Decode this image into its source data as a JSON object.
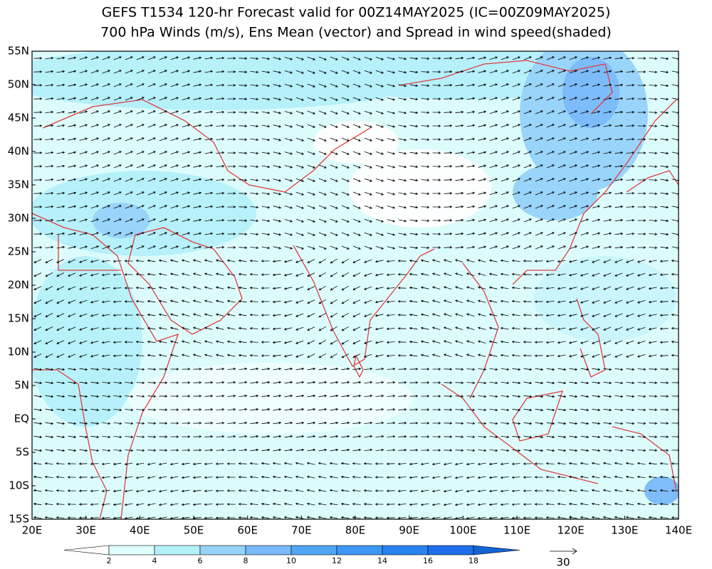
{
  "header": {
    "title": "GEFS T1534 120-hr Forecast valid for 00Z14MAY2025 (IC=00Z09MAY2025)",
    "subtitle": "700 hPa Winds (m/s), Ens Mean (vector) and Spread in wind speed(shaded)"
  },
  "map": {
    "lat_labels": [
      "55N",
      "50N",
      "45N",
      "40N",
      "35N",
      "30N",
      "25N",
      "20N",
      "15N",
      "10N",
      "5N",
      "EQ",
      "5S",
      "10S",
      "15S"
    ],
    "lon_labels": [
      "20E",
      "30E",
      "40E",
      "50E",
      "60E",
      "70E",
      "80E",
      "90E",
      "100E",
      "110E",
      "120E",
      "130E",
      "140E"
    ]
  },
  "colorbar": {
    "levels": [
      2,
      4,
      6,
      8,
      10,
      12,
      14,
      16,
      18
    ],
    "colors": [
      "#ffffff",
      "#e0ffff",
      "#b4f0fa",
      "#96d2fa",
      "#78b9fa",
      "#50a5f5",
      "#3c97f5",
      "#2882f0",
      "#1e6eeb",
      "#1464d2"
    ]
  },
  "reference_vector": {
    "label": "30"
  }
}
